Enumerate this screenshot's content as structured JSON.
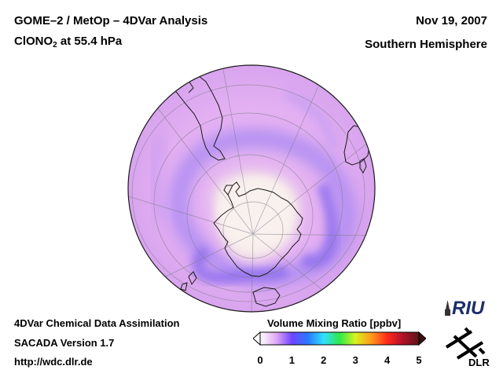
{
  "header": {
    "title_line1": "GOME–2 / MetOp – 4DVar Analysis",
    "species_prefix": "ClONO",
    "species_subscript": "2",
    "species_suffix": " at 55.4 hPa",
    "date": "Nov 19, 2007",
    "region": "Southern Hemisphere"
  },
  "footer": {
    "line1": "4DVar Chemical Data Assimilation",
    "line2": "SACADA Version 1.7",
    "line3": "http://wdc.dlr.de"
  },
  "colorbar": {
    "title": "Volume Mixing Ratio [ppbv]",
    "range": [
      0,
      5
    ],
    "ticks": [
      "0",
      "1",
      "2",
      "3",
      "4",
      "5"
    ],
    "tick_values": [
      0,
      1,
      2,
      3,
      4,
      5
    ],
    "colors": [
      "#ffffff",
      "#e2a9f5",
      "#6e45ff",
      "#2a78ff",
      "#30e0ff",
      "#2ee84a",
      "#d9f21e",
      "#ff9a1a",
      "#ff2a1a",
      "#b0102a",
      "#5a1616"
    ]
  },
  "logos": {
    "riu": "RIU",
    "dlr": "DLR"
  },
  "map": {
    "projection": "orthographic south-polar",
    "field": "ClONO2 volume mixing ratio at 55.4 hPa"
  }
}
